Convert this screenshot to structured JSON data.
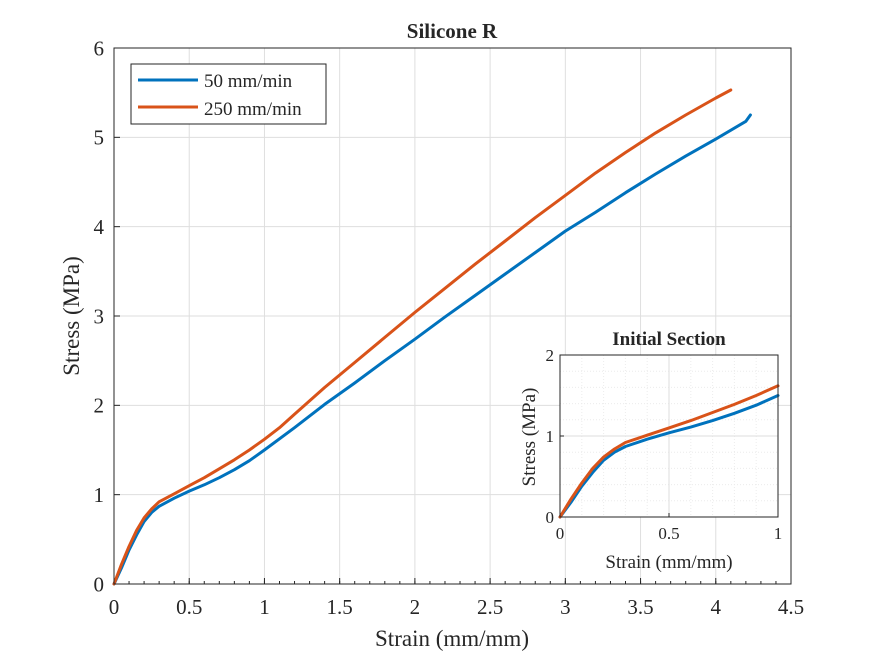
{
  "colors": {
    "series_1": "#0072BD",
    "series_2": "#D95319",
    "axis": "#262626",
    "grid": "#dedede"
  },
  "chart_data": [
    {
      "type": "line",
      "title": "Silicone R",
      "xlabel": "Strain (mm/mm)",
      "ylabel": "Stress (MPa)",
      "xlim": [
        0,
        4.5
      ],
      "ylim": [
        0,
        6
      ],
      "x_ticks": [
        "0",
        "0.5",
        "1",
        "1.5",
        "2",
        "2.5",
        "3",
        "3.5",
        "4",
        "4.5"
      ],
      "y_ticks": [
        "0",
        "1",
        "2",
        "3",
        "4",
        "5",
        "6"
      ],
      "grid": true,
      "legend_position": "top-left",
      "series": [
        {
          "name": "50 mm/min",
          "color": "#0072BD",
          "points": [
            [
              0,
              0
            ],
            [
              0.05,
              0.18
            ],
            [
              0.1,
              0.38
            ],
            [
              0.15,
              0.55
            ],
            [
              0.2,
              0.7
            ],
            [
              0.25,
              0.8
            ],
            [
              0.3,
              0.87
            ],
            [
              0.4,
              0.96
            ],
            [
              0.5,
              1.04
            ],
            [
              0.6,
              1.11
            ],
            [
              0.7,
              1.19
            ],
            [
              0.8,
              1.28
            ],
            [
              0.9,
              1.38
            ],
            [
              1.0,
              1.5
            ],
            [
              1.2,
              1.75
            ],
            [
              1.4,
              2.01
            ],
            [
              1.6,
              2.25
            ],
            [
              1.8,
              2.5
            ],
            [
              2.0,
              2.74
            ],
            [
              2.2,
              2.99
            ],
            [
              2.4,
              3.23
            ],
            [
              2.6,
              3.47
            ],
            [
              2.8,
              3.71
            ],
            [
              3.0,
              3.95
            ],
            [
              3.2,
              4.16
            ],
            [
              3.4,
              4.38
            ],
            [
              3.6,
              4.59
            ],
            [
              3.8,
              4.79
            ],
            [
              4.0,
              4.98
            ],
            [
              4.2,
              5.18
            ],
            [
              4.23,
              5.25
            ]
          ]
        },
        {
          "name": "250 mm/min",
          "color": "#D95319",
          "points": [
            [
              0,
              0
            ],
            [
              0.05,
              0.22
            ],
            [
              0.1,
              0.42
            ],
            [
              0.15,
              0.6
            ],
            [
              0.2,
              0.74
            ],
            [
              0.25,
              0.84
            ],
            [
              0.3,
              0.92
            ],
            [
              0.4,
              1.01
            ],
            [
              0.5,
              1.1
            ],
            [
              0.6,
              1.19
            ],
            [
              0.7,
              1.29
            ],
            [
              0.8,
              1.39
            ],
            [
              0.9,
              1.5
            ],
            [
              1.0,
              1.62
            ],
            [
              1.1,
              1.75
            ],
            [
              1.2,
              1.9
            ],
            [
              1.4,
              2.2
            ],
            [
              1.6,
              2.48
            ],
            [
              1.8,
              2.76
            ],
            [
              2.0,
              3.04
            ],
            [
              2.2,
              3.31
            ],
            [
              2.4,
              3.58
            ],
            [
              2.6,
              3.84
            ],
            [
              2.8,
              4.1
            ],
            [
              3.0,
              4.35
            ],
            [
              3.2,
              4.6
            ],
            [
              3.4,
              4.83
            ],
            [
              3.6,
              5.05
            ],
            [
              3.8,
              5.25
            ],
            [
              4.0,
              5.44
            ],
            [
              4.1,
              5.53
            ]
          ]
        }
      ]
    },
    {
      "type": "line",
      "title": "Initial Section",
      "xlabel": "Strain (mm/mm)",
      "ylabel": "Stress (MPa)",
      "xlim": [
        0,
        1
      ],
      "ylim": [
        0,
        2
      ],
      "x_ticks": [
        "0",
        "0.5",
        "1"
      ],
      "y_ticks": [
        "0",
        "1",
        "2"
      ],
      "grid": true,
      "series": [
        {
          "name": "50 mm/min",
          "color": "#0072BD",
          "points": [
            [
              0,
              0
            ],
            [
              0.05,
              0.18
            ],
            [
              0.1,
              0.38
            ],
            [
              0.15,
              0.55
            ],
            [
              0.2,
              0.7
            ],
            [
              0.25,
              0.8
            ],
            [
              0.3,
              0.87
            ],
            [
              0.4,
              0.96
            ],
            [
              0.5,
              1.04
            ],
            [
              0.6,
              1.11
            ],
            [
              0.7,
              1.19
            ],
            [
              0.8,
              1.28
            ],
            [
              0.9,
              1.38
            ],
            [
              1.0,
              1.5
            ]
          ]
        },
        {
          "name": "250 mm/min",
          "color": "#D95319",
          "points": [
            [
              0,
              0
            ],
            [
              0.05,
              0.22
            ],
            [
              0.1,
              0.42
            ],
            [
              0.15,
              0.6
            ],
            [
              0.2,
              0.74
            ],
            [
              0.25,
              0.84
            ],
            [
              0.3,
              0.92
            ],
            [
              0.4,
              1.01
            ],
            [
              0.5,
              1.1
            ],
            [
              0.6,
              1.19
            ],
            [
              0.7,
              1.29
            ],
            [
              0.8,
              1.39
            ],
            [
              0.9,
              1.5
            ],
            [
              1.0,
              1.62
            ]
          ]
        }
      ]
    }
  ]
}
